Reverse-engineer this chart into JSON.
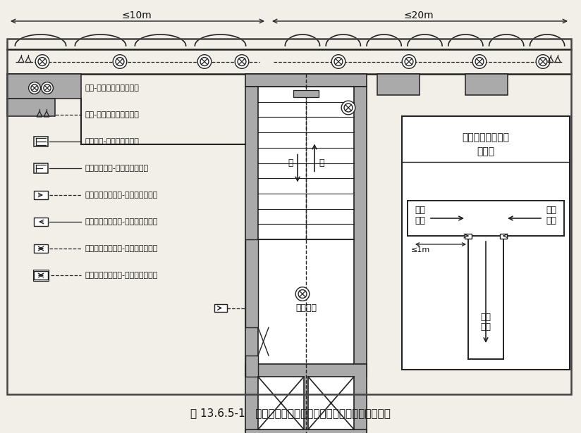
{
  "title": "图 13.6.5-1   疏散走道、防烟楼梯间及前室疏散照明布置示意",
  "bg_color": "#f2efe9",
  "wall_gray": "#aaaaaa",
  "dark_gray": "#888888",
  "line_color": "#222222",
  "text_color": "#111111",
  "white": "#ffffff",
  "dim_10m": "≤10m",
  "dim_20m": "≤20m",
  "legend": [
    {
      "sym": "circ_x2",
      "dashed": true,
      "label": "原装-消防应急疏散照明灯"
    },
    {
      "sym": "wall_lamp",
      "dashed": true,
      "label": "壁装-消防应急疏散照明灯"
    },
    {
      "sym": "exit_sign",
      "dashed": false,
      "label": "安全出口-消防应急标志灯"
    },
    {
      "sym": "evac_sign",
      "dashed": false,
      "label": "层号疏散指示-消防应急标志灯"
    },
    {
      "sym": "arr_r",
      "dashed": true,
      "label": "单面右向疏散指示-消防应急标志灯"
    },
    {
      "sym": "arr_l",
      "dashed": false,
      "label": "单面左向疏散指示-消防应急标志灯"
    },
    {
      "sym": "arr_b",
      "dashed": true,
      "label": "单面双向疏散指示-消防应急标志灯"
    },
    {
      "sym": "arr_bb",
      "dashed": true,
      "label": "双面双向疏散指示-消防应急标志灯"
    }
  ]
}
